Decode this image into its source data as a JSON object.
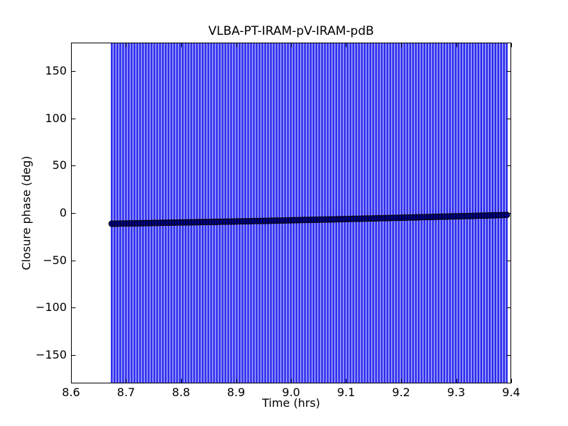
{
  "figure": {
    "title": "VLBA-PT-IRAM-pV-IRAM-pdB",
    "xlabel": "Time (hrs)",
    "ylabel": "Closure phase (deg)",
    "colors": {
      "background": "#ffffff",
      "errorbar_stripe": "#2424ef",
      "stripe_underlay": "#a7a7f8",
      "marker_fill": "#000088",
      "marker_edge": "#000000",
      "axis": "#000000",
      "text": "#000000"
    }
  },
  "chart_data": {
    "type": "scatter",
    "title": "VLBA-PT-IRAM-pV-IRAM-pdB",
    "xlabel": "Time (hrs)",
    "ylabel": "Closure phase (deg)",
    "xlim": [
      8.6,
      9.4
    ],
    "ylim": [
      -180,
      180
    ],
    "xtick_values": [
      8.6,
      8.7,
      8.8,
      8.9,
      9.0,
      9.1,
      9.2,
      9.3,
      9.4
    ],
    "xtick_labels": [
      "8.6",
      "8.7",
      "8.8",
      "8.9",
      "9.0",
      "9.1",
      "9.2",
      "9.3",
      "9.4"
    ],
    "ytick_values": [
      -150,
      -100,
      -50,
      0,
      50,
      100,
      150
    ],
    "ytick_labels": [
      "−150",
      "−100",
      "−50",
      "0",
      "50",
      "100",
      "150"
    ],
    "grid": false,
    "series": [
      {
        "name": "closure-phase-vs-time",
        "marker": "circle",
        "n_points": 140,
        "t_start": 8.674,
        "t_end": 9.392,
        "errorbar_note": "every point has a vertical error bar spanning the full y-range, clipped at ylim -180..180",
        "phase_samples_t_deg": [
          [
            8.674,
            -11.3
          ],
          [
            8.72,
            -10.9
          ],
          [
            8.77,
            -10.3
          ],
          [
            8.82,
            -9.8
          ],
          [
            8.87,
            -9.3
          ],
          [
            8.92,
            -8.7
          ],
          [
            8.97,
            -8.1
          ],
          [
            9.02,
            -7.4
          ],
          [
            9.07,
            -6.8
          ],
          [
            9.12,
            -6.1
          ],
          [
            9.17,
            -5.4
          ],
          [
            9.22,
            -4.7
          ],
          [
            9.27,
            -3.9
          ],
          [
            9.32,
            -3.2
          ],
          [
            9.37,
            -2.4
          ],
          [
            9.392,
            -2.0
          ]
        ]
      }
    ]
  }
}
